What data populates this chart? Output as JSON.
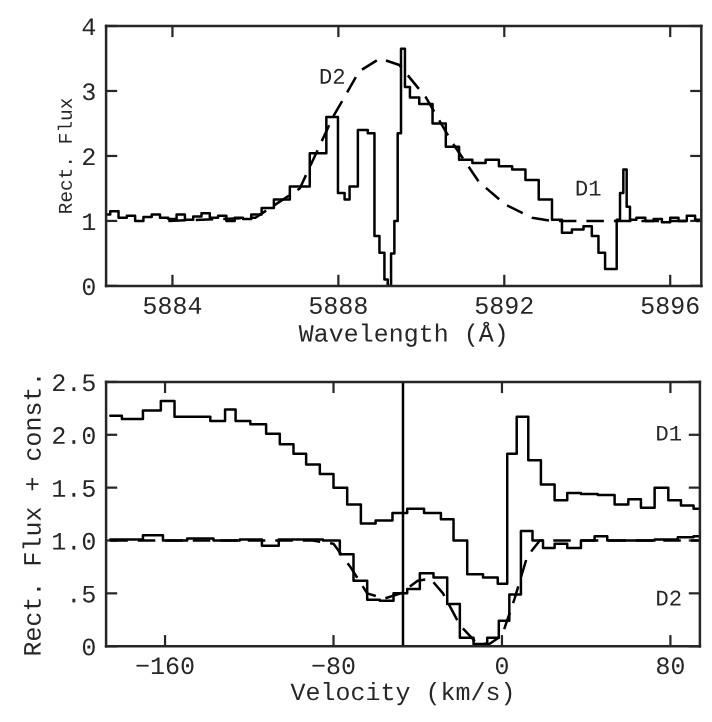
{
  "chart_data": [
    {
      "type": "step",
      "xlabel": "Wavelength (Å)",
      "ylabel": "Rect. Flux",
      "xlim": [
        5882.4,
        5896.75
      ],
      "ylim": [
        0,
        4
      ],
      "xticks": [
        5884,
        5888,
        5892,
        5896
      ],
      "yticks": [
        0,
        1,
        2,
        3,
        4
      ],
      "legend": false,
      "grid": false,
      "series": [
        {
          "color": "#000000",
          "line_style": "solid",
          "x": [
            5882.4,
            5882.6,
            5882.8,
            5883.0,
            5883.2,
            5883.4,
            5883.6,
            5883.8,
            5884.0,
            5884.2,
            5884.4,
            5884.6,
            5884.8,
            5885.0,
            5885.2,
            5885.4,
            5885.6,
            5885.8,
            5886.0,
            5886.3,
            5886.59,
            5887.07,
            5887.55,
            5887.87,
            5888.11,
            5888.19,
            5888.35,
            5888.59,
            5888.83,
            5888.91,
            5889.07,
            5889.15,
            5889.23,
            5889.31,
            5889.39,
            5889.47,
            5889.55,
            5889.66,
            5889.79,
            5890.11,
            5890.43,
            5890.75,
            5891.07,
            5891.39,
            5891.71,
            5892.03,
            5892.35,
            5892.67,
            5892.99,
            5893.31,
            5893.47,
            5893.79,
            5894.03,
            5894.19,
            5894.35,
            5894.51,
            5894.67,
            5894.75,
            5894.83,
            5894.91,
            5894.99,
            5895.07,
            5895.3,
            5895.5,
            5895.7,
            5895.9,
            5896.1,
            5896.3,
            5896.5,
            5896.7
          ],
          "values": [
            1.1,
            1.15,
            1.05,
            1.08,
            1.0,
            1.06,
            1.1,
            1.05,
            1.03,
            1.1,
            1.02,
            1.07,
            1.12,
            1.05,
            1.08,
            1.0,
            1.05,
            1.03,
            1.1,
            1.2,
            1.33,
            1.53,
            2.04,
            2.6,
            1.43,
            1.33,
            1.53,
            2.4,
            2.35,
            0.77,
            0.51,
            0.1,
            0.0,
            0.5,
            1.0,
            2.35,
            3.65,
            3.06,
            2.9,
            2.8,
            2.5,
            2.14,
            1.94,
            1.89,
            1.94,
            1.84,
            1.79,
            1.63,
            1.33,
            1.02,
            0.82,
            0.87,
            0.92,
            0.77,
            0.51,
            0.26,
            0.26,
            1.02,
            1.43,
            1.79,
            1.22,
            1.02,
            1.05,
            1.0,
            1.03,
            0.98,
            1.05,
            1.0,
            1.08,
            1.02
          ]
        },
        {
          "type": "line",
          "color": "#000000",
          "line_style": "dashed",
          "x": [
            5883.9,
            5886.0,
            5887.07,
            5887.87,
            5888.5,
            5889.0,
            5889.47,
            5890.11,
            5890.75,
            5891.39,
            5892.03,
            5892.67,
            5893.15,
            5894.27,
            5895.4,
            5896.7
          ],
          "values": [
            1.0,
            1.05,
            1.5,
            2.6,
            3.3,
            3.5,
            3.4,
            2.9,
            2.2,
            1.6,
            1.25,
            1.05,
            1.0,
            1.0,
            1.0,
            1.0
          ]
        }
      ],
      "annotations": [
        "D2",
        "D1"
      ]
    },
    {
      "type": "step",
      "xlabel": "Velocity (km/s)",
      "ylabel": "Rect. Flux + const.",
      "xlim": [
        -188,
        94
      ],
      "ylim": [
        0,
        2.5
      ],
      "xticks": [
        {
          "value": -160,
          "label": "−160"
        },
        {
          "value": -80,
          "label": "−80"
        },
        0,
        80
      ],
      "yticks": [
        0,
        {
          "value": 0.5,
          "label": ".5"
        },
        {
          "value": 1.0,
          "label": "1.0"
        },
        {
          "value": 1.5,
          "label": "1.5"
        },
        {
          "value": 2.0,
          "label": "2.0"
        },
        {
          "value": 2.5,
          "label": "2.5"
        }
      ],
      "legend": false,
      "grid": false,
      "ref_lines": [
        {
          "axis": "x",
          "value": -47,
          "color": "#000000",
          "line_style": "solid"
        }
      ],
      "series": [
        {
          "name": "D1",
          "color": "#000000",
          "line_style": "solid",
          "x": [
            -186,
            -175,
            -166,
            -158,
            -153,
            -143,
            -134,
            -129,
            -124,
            -115,
            -109,
            -102,
            -96,
            -90,
            -83,
            -77,
            -70,
            -64,
            -56,
            -48,
            -42,
            -32,
            -26,
            -20,
            -13,
            -5,
            1,
            4,
            10,
            15,
            22,
            28,
            34,
            41,
            50,
            57,
            63,
            69,
            76,
            82,
            88,
            94
          ],
          "values": [
            2.18,
            2.15,
            2.23,
            2.32,
            2.17,
            2.17,
            2.13,
            2.24,
            2.13,
            2.1,
            2.01,
            1.91,
            1.82,
            1.72,
            1.63,
            1.5,
            1.34,
            1.16,
            1.19,
            1.26,
            1.3,
            1.26,
            1.2,
            1.0,
            0.68,
            0.65,
            0.59,
            1.82,
            2.17,
            1.76,
            1.53,
            1.38,
            1.45,
            1.44,
            1.43,
            1.34,
            1.39,
            1.31,
            1.5,
            1.38,
            1.33,
            1.3
          ]
        },
        {
          "name": "D2",
          "color": "#000000",
          "line_style": "solid",
          "x": [
            -186,
            -175,
            -166,
            -156,
            -143,
            -131,
            -118,
            -110,
            -102,
            -90,
            -80,
            -74,
            -67,
            -61,
            -55,
            -48,
            -42,
            -36,
            -29,
            -23,
            -17,
            -10,
            -4,
            1,
            6,
            12,
            17,
            22,
            28,
            34,
            41,
            47,
            53,
            66,
            79,
            88,
            94
          ],
          "values": [
            1.01,
            1.01,
            1.05,
            1.0,
            1.02,
            1.0,
            1.01,
            0.95,
            1.01,
            1.01,
            1.0,
            0.87,
            0.62,
            0.44,
            0.43,
            0.5,
            0.54,
            0.69,
            0.65,
            0.4,
            0.08,
            0.02,
            0.08,
            0.24,
            0.49,
            1.09,
            1.0,
            0.93,
            0.97,
            0.93,
            1.0,
            1.04,
            1.0,
            1.0,
            1.01,
            1.03,
            1.04
          ]
        },
        {
          "type": "line",
          "color": "#000000",
          "line_style": "dashed",
          "x": [
            -186,
            -90,
            -80,
            -72,
            -64,
            -56,
            -48,
            -40,
            -34,
            -28,
            -20,
            -12,
            -6,
            0,
            6,
            12,
            18,
            30,
            94
          ],
          "values": [
            1.0,
            1.0,
            0.97,
            0.75,
            0.5,
            0.45,
            0.5,
            0.62,
            0.64,
            0.5,
            0.2,
            0.03,
            0.02,
            0.1,
            0.45,
            0.85,
            1.0,
            1.0,
            1.0
          ]
        }
      ]
    }
  ]
}
